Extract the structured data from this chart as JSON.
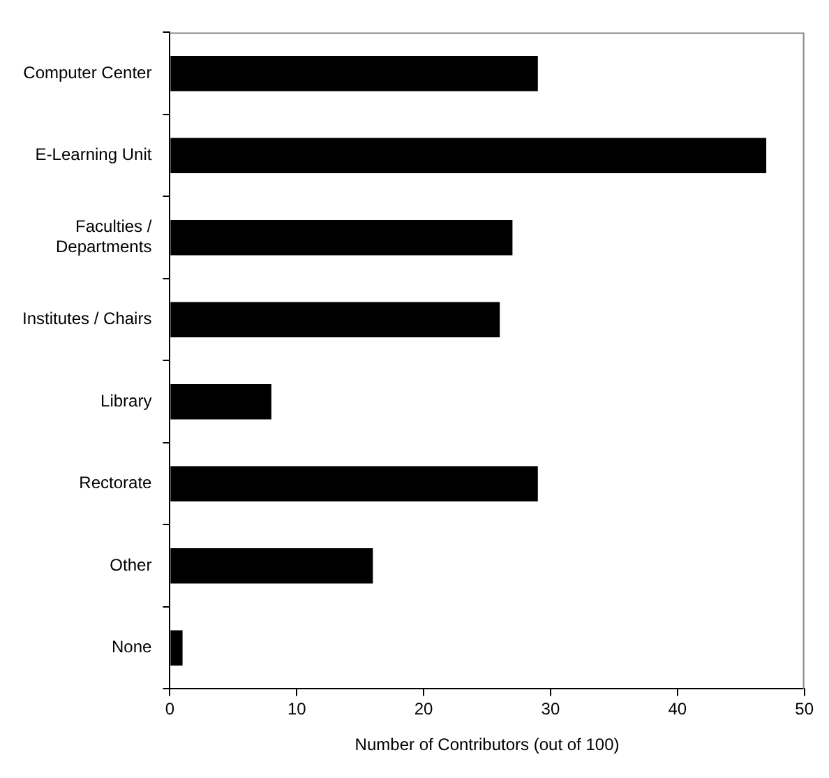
{
  "chart_data": {
    "type": "bar",
    "orientation": "horizontal",
    "xlabel": "Number of Contributors (out of 100)",
    "categories": [
      "Computer Center",
      "E-Learning Unit",
      "Faculties / Departments",
      "Institutes / Chairs",
      "Library",
      "Rectorate",
      "Other",
      "None"
    ],
    "values": [
      29,
      47,
      27,
      26,
      8,
      29,
      16,
      1
    ],
    "color": "#000000",
    "xlim": [
      0,
      50
    ],
    "xticks": [
      0,
      10,
      20,
      30,
      40,
      50
    ],
    "grid": false,
    "legend": false
  }
}
